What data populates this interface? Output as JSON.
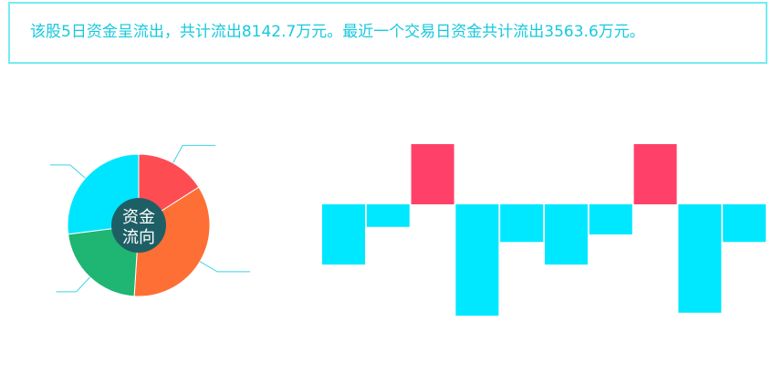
{
  "summary": {
    "text": "该股5日资金呈流出，共计流出8142.7万元。最近一个交易日资金共计流出3563.6万元。"
  },
  "chart_data": [
    {
      "type": "pie",
      "center_label_line1": "资金",
      "center_label_line2": "流向",
      "center_color": "#1e5f66",
      "slices": [
        {
          "value": 16,
          "color": "#fe4c53"
        },
        {
          "value": 35,
          "color": "#fe6f35"
        },
        {
          "value": 22,
          "color": "#1fb573"
        },
        {
          "value": 27,
          "color": "#00e5ff"
        }
      ]
    },
    {
      "type": "bar",
      "values": [
        -2.0,
        -0.75,
        2.0,
        -3.7,
        -1.25,
        -2.0,
        -1.0,
        2.0,
        -3.6,
        -1.25
      ],
      "positive_color": "#ff416a",
      "negative_color": "#00e8ff"
    }
  ]
}
